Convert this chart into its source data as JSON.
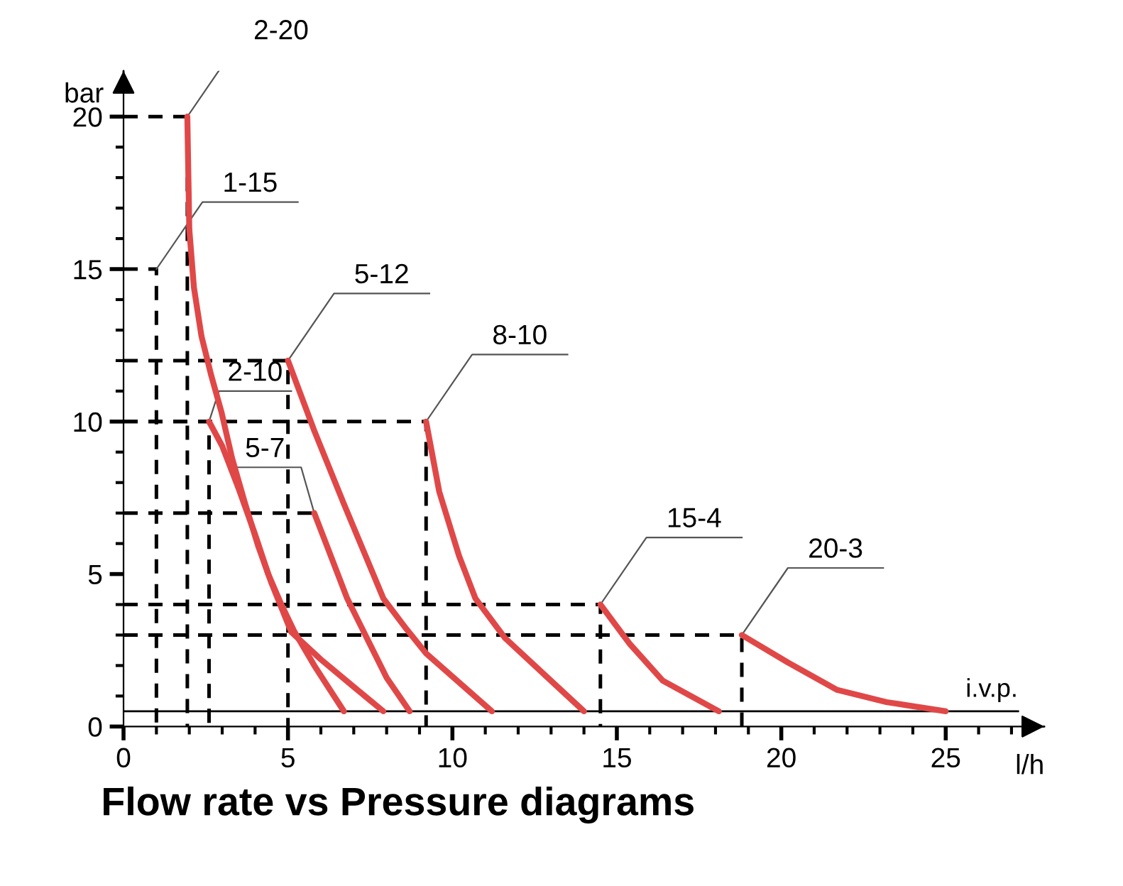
{
  "chart_data": {
    "type": "line",
    "title": "Flow rate vs Pressure diagrams",
    "xlabel": "l/h",
    "ylabel": "bar",
    "xlim": [
      0,
      28
    ],
    "ylim": [
      0,
      21.5
    ],
    "xticks": [
      0,
      5,
      10,
      15,
      20,
      25
    ],
    "yticks": [
      0,
      5,
      10,
      15,
      20
    ],
    "grid": false,
    "legend": false,
    "marker": "none",
    "line_style": "solid",
    "series": [
      {
        "name": "2-20",
        "color": "#e04848",
        "x": [
          1.94,
          2.0,
          2.14,
          2.37,
          2.67,
          2.98,
          3.3,
          3.7,
          4.1,
          4.5,
          5.1,
          6.0,
          7.0,
          7.9
        ],
        "values": [
          20,
          16.3,
          14.4,
          12.8,
          11.5,
          10.3,
          8.8,
          7.3,
          5.9,
          4.7,
          3.1,
          2.2,
          1.3,
          0.5
        ]
      },
      {
        "name": "5-12",
        "color": "#e04848",
        "x": [
          5.0,
          5.8,
          6.7,
          7.9,
          8.6,
          9.2,
          11.2
        ],
        "values": [
          12,
          9.7,
          7.3,
          4.2,
          3.2,
          2.4,
          0.5
        ]
      },
      {
        "name": "2-10",
        "color": "#e04848",
        "x": [
          2.6,
          3.0,
          3.5,
          4.0,
          4.4,
          4.8,
          5.2,
          5.8,
          6.7
        ],
        "values": [
          10,
          9.2,
          7.8,
          6.3,
          5.0,
          4.0,
          3.1,
          2.0,
          0.5
        ]
      },
      {
        "name": "5-7",
        "color": "#e04848",
        "x": [
          5.8,
          6.3,
          6.8,
          7.4,
          8.0,
          8.7
        ],
        "values": [
          7,
          5.6,
          4.2,
          2.9,
          1.6,
          0.5
        ]
      },
      {
        "name": "8-10",
        "color": "#e04848",
        "x": [
          9.2,
          9.6,
          10.2,
          10.7,
          11.6,
          12.8,
          14.0
        ],
        "values": [
          10,
          7.7,
          5.6,
          4.2,
          2.9,
          1.7,
          0.5
        ]
      },
      {
        "name": "15-4",
        "color": "#e04848",
        "x": [
          14.5,
          15.4,
          16.4,
          18.1
        ],
        "values": [
          4,
          2.7,
          1.5,
          0.5
        ]
      },
      {
        "name": "20-3",
        "color": "#e04848",
        "x": [
          18.8,
          20.2,
          21.7,
          23.2,
          25.0
        ],
        "values": [
          3,
          2.1,
          1.2,
          0.8,
          0.5
        ]
      },
      {
        "name": "1-15",
        "color": "#000000",
        "line_style": "dashed",
        "x": [
          0,
          1,
          1
        ],
        "values": [
          15,
          15,
          0
        ]
      },
      {
        "color": "#000000",
        "line_style": "dashed",
        "x": [
          0,
          1.94,
          1.94
        ],
        "values": [
          20,
          20,
          0
        ]
      },
      {
        "color": "#000000",
        "line_style": "dashed",
        "x": [
          0,
          5.0,
          5.0
        ],
        "values": [
          12,
          12,
          0
        ]
      },
      {
        "color": "#000000",
        "line_style": "dashed",
        "x": [
          0,
          2.6,
          2.6
        ],
        "values": [
          10,
          10,
          0
        ]
      },
      {
        "color": "#000000",
        "line_style": "dashed",
        "x": [
          0,
          5.8
        ],
        "values": [
          7,
          7
        ]
      },
      {
        "color": "#000000",
        "line_style": "dashed",
        "x": [
          0,
          9.2,
          9.2
        ],
        "values": [
          10,
          10,
          0
        ]
      },
      {
        "color": "#000000",
        "line_style": "dashed",
        "x": [
          0,
          14.5,
          14.5
        ],
        "values": [
          4,
          4,
          0
        ]
      },
      {
        "color": "#000000",
        "line_style": "dashed",
        "x": [
          0,
          18.8,
          18.8
        ],
        "values": [
          3,
          3,
          0
        ]
      }
    ],
    "ref_lines": [
      {
        "axis": "y",
        "value": 0.5,
        "label": "i.v.p.",
        "color": "#000000",
        "line_style": "solid"
      }
    ]
  }
}
